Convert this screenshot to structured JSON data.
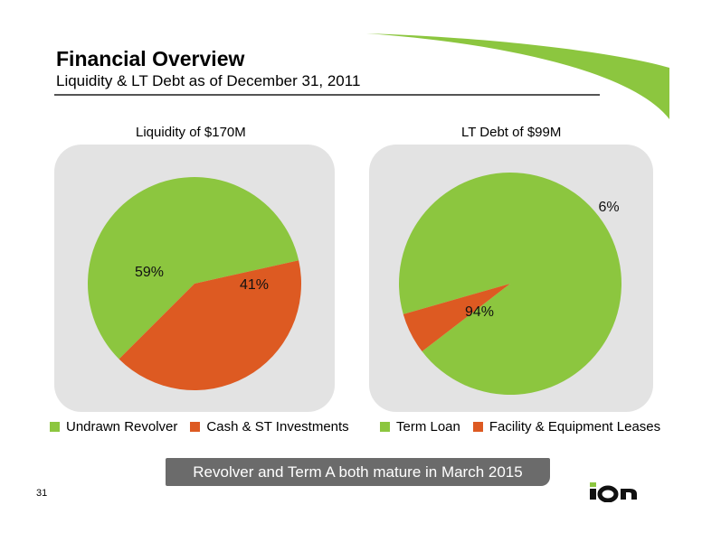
{
  "header": {
    "title": "Financial Overview",
    "subtitle": "Liquidity & LT Debt as of December 31, 2011"
  },
  "colors": {
    "green": "#8cc63f",
    "orange": "#dd5a22",
    "accent_green": "#8cc63f",
    "panel_gray": "#e3e3e3",
    "banner_gray": "#6b6b6b"
  },
  "chart_data": [
    {
      "type": "pie",
      "title": "Liquidity of $170M",
      "categories": [
        "Undrawn Revolver",
        "Cash & ST Investments"
      ],
      "values": [
        59,
        41
      ],
      "labels": [
        "59%",
        "41%"
      ],
      "colors": [
        "#8cc63f",
        "#dd5a22"
      ],
      "legend": "bottom"
    },
    {
      "type": "pie",
      "title": "LT Debt of $99M",
      "categories": [
        "Term Loan",
        "Facility & Equipment Leases"
      ],
      "values": [
        94,
        6
      ],
      "labels": [
        "94%",
        "6%"
      ],
      "colors": [
        "#8cc63f",
        "#dd5a22"
      ],
      "legend": "bottom"
    }
  ],
  "banner": "Revolver and Term A both mature in March 2015",
  "page_number": "31",
  "logo": "ion"
}
